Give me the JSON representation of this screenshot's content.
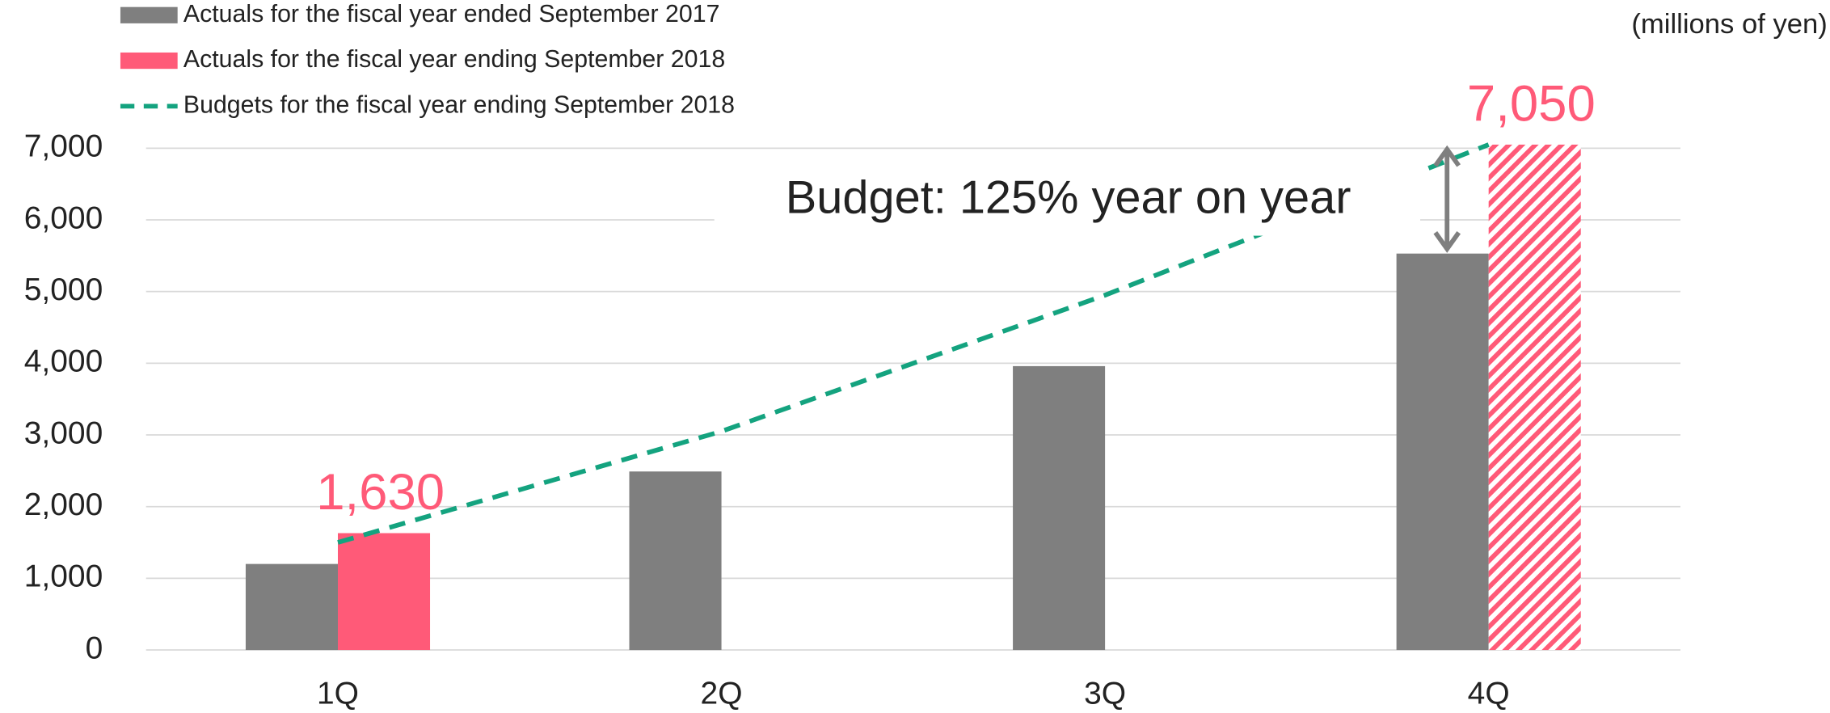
{
  "chart_data": {
    "type": "bar",
    "unit_label": "(millions of yen)",
    "annotation": "Budget: 125% year on year",
    "categories": [
      "1Q",
      "2Q",
      "3Q",
      "4Q"
    ],
    "series": [
      {
        "name": "Actuals for the fiscal year ended September 2017",
        "color": "#7f7f7f",
        "values": [
          1200,
          2490,
          3960,
          5530
        ]
      },
      {
        "name": "Actuals for the fiscal year ending September 2018",
        "color": "#ff5a78",
        "values": [
          1630,
          null,
          null,
          7050
        ],
        "value_labels": [
          "1,630",
          null,
          null,
          "7,050"
        ],
        "hatched": [
          false,
          false,
          false,
          true
        ]
      },
      {
        "name": "Budgets for the fiscal year ending September 2018",
        "color": "#14a37f",
        "type": "line",
        "dashed": true,
        "values": [
          1500,
          3050,
          4950,
          7050
        ]
      }
    ],
    "ylim": [
      0,
      7000
    ],
    "yticks": [
      0,
      {
        "value": 1000,
        "label": "1,000"
      },
      {
        "value": 2000,
        "label": "2,000"
      },
      {
        "value": 3000,
        "label": "3,000"
      },
      {
        "value": 4000,
        "label": "4,000"
      },
      {
        "value": 5000,
        "label": "5,000"
      },
      {
        "value": 6000,
        "label": "6,000"
      },
      {
        "value": 7000,
        "label": "7,000"
      }
    ],
    "grid": true
  }
}
